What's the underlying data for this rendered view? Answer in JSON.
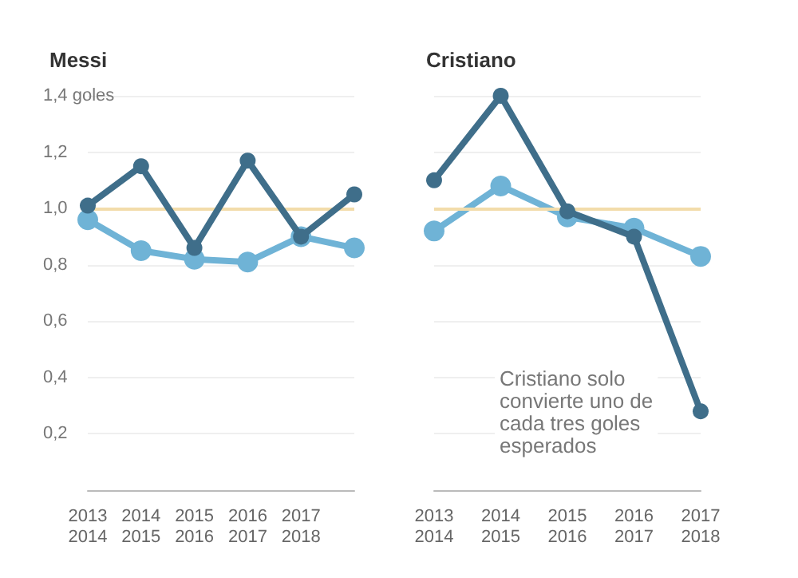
{
  "chart_data": [
    {
      "type": "line",
      "title": "Messi",
      "categories": [
        "2013\n2014",
        "2014\n2015",
        "2015\n2016",
        "2016\n2017",
        "2017\n2018",
        null
      ],
      "series": [
        {
          "color": "#3f6e8a",
          "values": [
            1.01,
            1.15,
            0.86,
            1.17,
            0.9,
            1.05
          ]
        },
        {
          "color": "#6fb3d6",
          "values": [
            0.96,
            0.85,
            0.82,
            0.81,
            0.9,
            0.86
          ]
        }
      ],
      "ylim": [
        0,
        1.4
      ],
      "yticks": [
        {
          "value": 0,
          "label": null
        },
        {
          "value": 0.2,
          "label": "0,2"
        },
        {
          "value": 0.4,
          "label": "0,4"
        },
        {
          "value": 0.6,
          "label": "0,6"
        },
        {
          "value": 0.8,
          "label": "0,8"
        },
        {
          "value": 1.0,
          "label": "1,0"
        },
        {
          "value": 1.2,
          "label": "1,2"
        },
        {
          "value": 1.4,
          "label": "1,4 goles"
        }
      ],
      "ref_lines": [
        {
          "axis": "y",
          "value": 1.0,
          "color": "#f2dcaa"
        }
      ],
      "grid": "y",
      "marker": "circle",
      "line_style": "solid"
    },
    {
      "type": "line",
      "title": "Cristiano",
      "categories": [
        "2013\n2014",
        "2014\n2015",
        "2015\n2016",
        "2016\n2017",
        "2017\n2018"
      ],
      "series": [
        {
          "color": "#3f6e8a",
          "values": [
            1.1,
            1.4,
            0.99,
            0.9,
            0.28
          ]
        },
        {
          "color": "#6fb3d6",
          "values": [
            0.92,
            1.08,
            0.97,
            0.93,
            0.83
          ]
        }
      ],
      "ylim": [
        0,
        1.4
      ],
      "yticks": [
        {
          "value": 0,
          "label": null
        },
        {
          "value": 0.2,
          "label": null
        },
        {
          "value": 0.4,
          "label": null
        },
        {
          "value": 0.6,
          "label": null
        },
        {
          "value": 0.8,
          "label": null
        },
        {
          "value": 1.0,
          "label": null
        },
        {
          "value": 1.2,
          "label": null
        },
        {
          "value": 1.4,
          "label": null
        }
      ],
      "ref_lines": [
        {
          "axis": "y",
          "value": 1.0,
          "color": "#f2dcaa"
        }
      ],
      "annotations": [
        "Cristiano solo\nconvierte uno de\ncada tres goles\nesperados"
      ],
      "tick_labels": "x",
      "grid": "y",
      "marker": "circle",
      "line_style": "solid"
    }
  ]
}
